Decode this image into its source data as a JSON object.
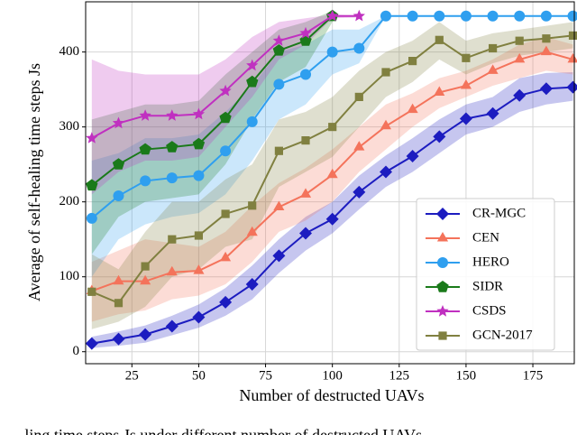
{
  "chart_data": {
    "type": "line",
    "xlabel": "Number of destructed UAVs",
    "ylabel": "Average of self-healing time steps Js",
    "caption": "ling time steps Js under different number of destructed UAVs.",
    "x": [
      10,
      20,
      30,
      40,
      50,
      60,
      70,
      80,
      90,
      100,
      110,
      120,
      130,
      140,
      150,
      160,
      170,
      180,
      190
    ],
    "xlim": [
      7.7,
      190.5
    ],
    "ylim": [
      -16,
      467
    ],
    "xticks": [
      25,
      50,
      75,
      100,
      125,
      150,
      175
    ],
    "yticks": [
      0,
      100,
      200,
      300,
      400
    ],
    "grid": true,
    "legend": "lower right",
    "series": [
      {
        "name": "CR-MGC",
        "color": "#1c1cc0",
        "marker": "diamond",
        "values": [
          11,
          17,
          23,
          34,
          46,
          66,
          90,
          128,
          158,
          177,
          213,
          240,
          261,
          287,
          311,
          318,
          342,
          351,
          353
        ],
        "lower": [
          5,
          8,
          12,
          22,
          32,
          48,
          70,
          105,
          135,
          158,
          190,
          220,
          240,
          265,
          290,
          300,
          320,
          330,
          335
        ],
        "upper": [
          20,
          27,
          35,
          48,
          63,
          85,
          115,
          150,
          180,
          200,
          235,
          262,
          285,
          310,
          330,
          340,
          365,
          372,
          373
        ]
      },
      {
        "name": "CEN",
        "color": "#f4735b",
        "marker": "triangle",
        "values": [
          81,
          94,
          94,
          106,
          108,
          125,
          159,
          193,
          210,
          236,
          273,
          301,
          323,
          346,
          355,
          375,
          390,
          400,
          390
        ],
        "lower": [
          40,
          50,
          55,
          70,
          75,
          90,
          120,
          160,
          175,
          200,
          240,
          270,
          300,
          325,
          340,
          355,
          365,
          375,
          370
        ],
        "upper": [
          120,
          135,
          150,
          145,
          140,
          160,
          195,
          225,
          245,
          270,
          300,
          330,
          345,
          365,
          375,
          390,
          410,
          420,
          410
        ]
      },
      {
        "name": "HERO",
        "color": "#2f9fef",
        "marker": "circle",
        "values": [
          178,
          208,
          228,
          232,
          235,
          268,
          307,
          357,
          370,
          400,
          405,
          448,
          448,
          448,
          448,
          448,
          448,
          448,
          448
        ],
        "lower": [
          100,
          150,
          170,
          180,
          185,
          210,
          255,
          310,
          330,
          370,
          385,
          448,
          448,
          448,
          448,
          448,
          448,
          448,
          448
        ],
        "upper": [
          255,
          265,
          285,
          285,
          290,
          320,
          355,
          400,
          410,
          430,
          430,
          448,
          448,
          448,
          448,
          448,
          448,
          448,
          448
        ]
      },
      {
        "name": "SIDR",
        "color": "#1a7a1a",
        "marker": "pentagon",
        "values": [
          222,
          250,
          270,
          273,
          277,
          312,
          360,
          402,
          415,
          448,
          null,
          null,
          null,
          null,
          null,
          null,
          null,
          null,
          null
        ],
        "lower": [
          130,
          180,
          200,
          205,
          210,
          250,
          310,
          360,
          380,
          440,
          null,
          null,
          null,
          null,
          null,
          null,
          null,
          null,
          null
        ],
        "upper": [
          310,
          320,
          330,
          330,
          335,
          370,
          400,
          430,
          440,
          455,
          null,
          null,
          null,
          null,
          null,
          null,
          null,
          null,
          null
        ]
      },
      {
        "name": "CSDS",
        "color": "#c030c0",
        "marker": "star",
        "values": [
          285,
          305,
          315,
          315,
          317,
          348,
          382,
          415,
          425,
          448,
          448,
          null,
          null,
          null,
          null,
          null,
          null,
          null,
          null
        ],
        "lower": [
          210,
          240,
          255,
          255,
          260,
          300,
          340,
          390,
          410,
          445,
          446,
          null,
          null,
          null,
          null,
          null,
          null,
          null,
          null
        ],
        "upper": [
          390,
          375,
          370,
          370,
          370,
          390,
          420,
          440,
          445,
          450,
          449,
          null,
          null,
          null,
          null,
          null,
          null,
          null,
          null
        ]
      },
      {
        "name": "GCN-2017",
        "color": "#808040",
        "marker": "square",
        "values": [
          80,
          65,
          114,
          150,
          155,
          184,
          195,
          268,
          282,
          300,
          340,
          373,
          388,
          416,
          392,
          405,
          415,
          418,
          422
        ],
        "lower": [
          30,
          40,
          60,
          100,
          110,
          140,
          150,
          220,
          240,
          260,
          300,
          340,
          360,
          390,
          370,
          385,
          395,
          400,
          405
        ],
        "upper": [
          130,
          110,
          160,
          200,
          200,
          230,
          250,
          310,
          320,
          340,
          375,
          400,
          415,
          440,
          415,
          425,
          430,
          435,
          440
        ]
      }
    ]
  }
}
